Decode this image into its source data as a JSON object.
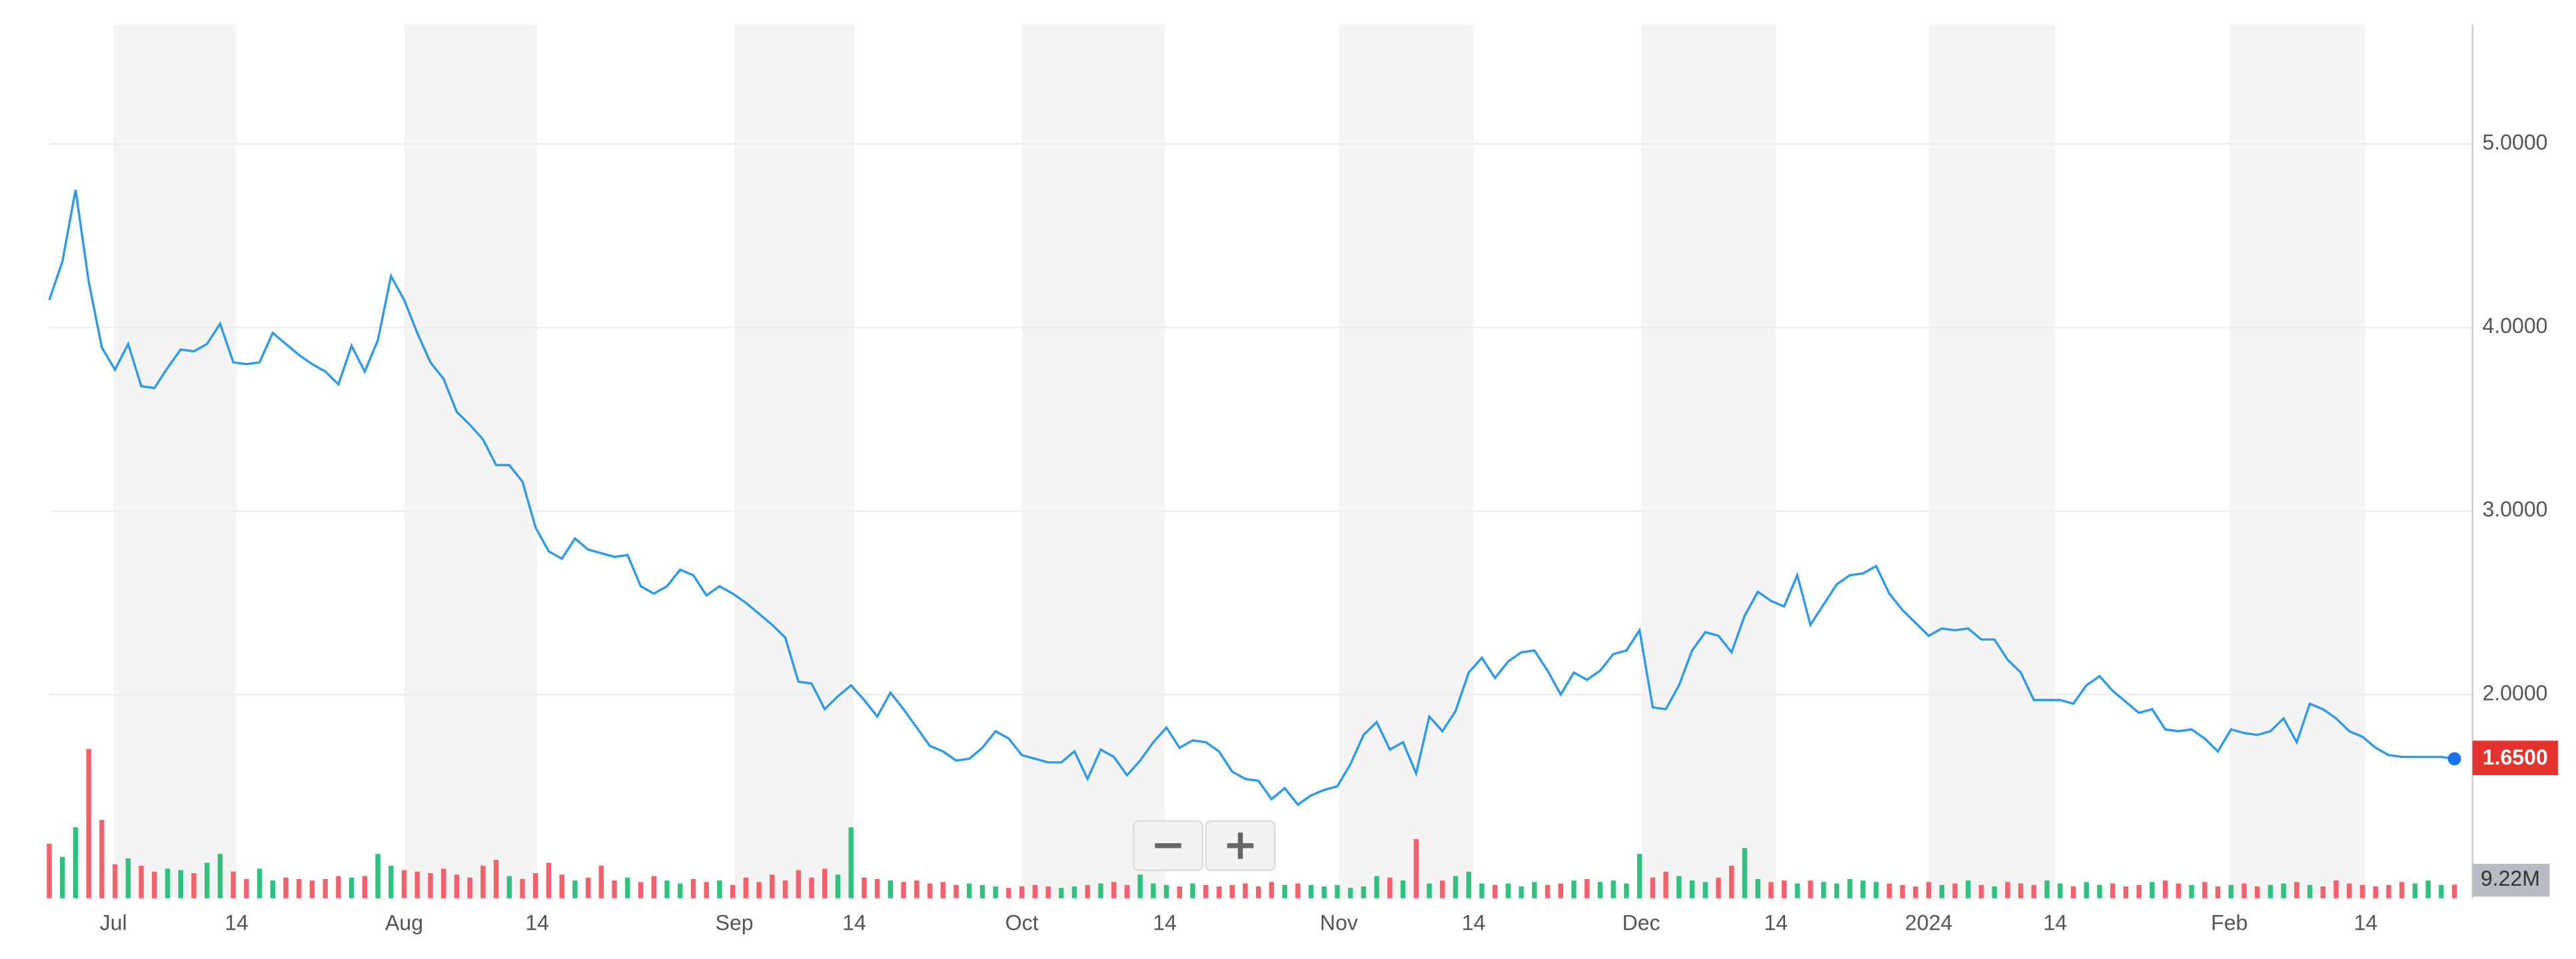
{
  "chart_data": {
    "type": "line",
    "line_color": "#2f9be6",
    "up_color": "#2ec27e",
    "down_color": "#f4606c",
    "band_color": "#f4f4f4",
    "grid": true,
    "xlim": [
      0,
      183
    ],
    "xticks": [
      {
        "value": 4.875,
        "label": "Jul"
      },
      {
        "value": 14.25,
        "label": "14"
      },
      {
        "value": 27,
        "label": "Aug"
      },
      {
        "value": 37.125,
        "label": "14"
      },
      {
        "value": 52.125,
        "label": "Sep"
      },
      {
        "value": 61.25,
        "label": "14"
      },
      {
        "value": 74,
        "label": "Oct"
      },
      {
        "value": 84.875,
        "label": "14"
      },
      {
        "value": 98.125,
        "label": "Nov"
      },
      {
        "value": 108.375,
        "label": "14"
      },
      {
        "value": 121.125,
        "label": "Dec"
      },
      {
        "value": 131.375,
        "label": "14"
      },
      {
        "value": 143,
        "label": "2024"
      },
      {
        "value": 152.625,
        "label": "14"
      },
      {
        "value": 165.875,
        "label": "Feb"
      },
      {
        "value": 176.25,
        "label": "14"
      }
    ],
    "ylim": [
      0.89,
      5.65
    ],
    "yticks": [
      {
        "value": 2,
        "label": "2.0000"
      },
      {
        "value": 3,
        "label": "3.0000"
      },
      {
        "value": 4,
        "label": "4.0000"
      },
      {
        "value": 5,
        "label": "5.0000"
      }
    ],
    "vlim": [
      0,
      120
    ],
    "last_price_label": "1.6500",
    "last_volume_label": "9.22M",
    "series": [
      {
        "name": "Price",
        "values": [
          4.15,
          4.36,
          4.75,
          4.25,
          3.89,
          3.77,
          3.91,
          3.68,
          3.67,
          3.78,
          3.88,
          3.87,
          3.91,
          4.02,
          3.81,
          3.8,
          3.81,
          3.97,
          3.91,
          3.85,
          3.8,
          3.76,
          3.69,
          3.9,
          3.76,
          3.93,
          4.28,
          4.15,
          3.97,
          3.81,
          3.72,
          3.54,
          3.47,
          3.39,
          3.25,
          3.25,
          3.16,
          2.91,
          2.78,
          2.74,
          2.85,
          2.79,
          2.77,
          2.75,
          2.76,
          2.59,
          2.55,
          2.59,
          2.68,
          2.65,
          2.54,
          2.59,
          2.55,
          2.5,
          2.44,
          2.38,
          2.31,
          2.07,
          2.06,
          1.92,
          1.99,
          2.05,
          1.97,
          1.88,
          2.01,
          1.92,
          1.82,
          1.72,
          1.69,
          1.64,
          1.65,
          1.71,
          1.8,
          1.76,
          1.67,
          1.65,
          1.63,
          1.63,
          1.69,
          1.54,
          1.7,
          1.66,
          1.56,
          1.64,
          1.74,
          1.82,
          1.71,
          1.75,
          1.74,
          1.69,
          1.58,
          1.54,
          1.53,
          1.43,
          1.49,
          1.4,
          1.45,
          1.48,
          1.5,
          1.62,
          1.78,
          1.85,
          1.7,
          1.74,
          1.57,
          1.88,
          1.8,
          1.91,
          2.12,
          2.2,
          2.09,
          2.18,
          2.23,
          2.24,
          2.13,
          2.0,
          2.12,
          2.08,
          2.13,
          2.22,
          2.24,
          2.35,
          1.93,
          1.92,
          2.05,
          2.24,
          2.34,
          2.32,
          2.23,
          2.43,
          2.56,
          2.51,
          2.48,
          2.65,
          2.38,
          2.49,
          2.6,
          2.65,
          2.66,
          2.7,
          2.55,
          2.46,
          2.39,
          2.32,
          2.36,
          2.35,
          2.36,
          2.3,
          2.3,
          2.19,
          2.12,
          1.97,
          1.97,
          1.97,
          1.95,
          2.05,
          2.1,
          2.02,
          1.96,
          1.9,
          1.92,
          1.81,
          1.8,
          1.81,
          1.76,
          1.69,
          1.81,
          1.79,
          1.78,
          1.8,
          1.87,
          1.74,
          1.95,
          1.92,
          1.87,
          1.8,
          1.77,
          1.71,
          1.67,
          1.66,
          1.66,
          1.66,
          1.66,
          1.65
        ]
      },
      {
        "name": "Volume",
        "values": [
          37,
          28,
          48,
          101,
          53,
          23,
          27,
          22,
          18,
          20,
          19,
          17,
          24,
          30,
          18,
          13,
          20,
          12,
          14,
          13,
          12,
          13,
          15,
          14,
          15,
          30,
          22,
          19,
          18,
          17,
          20,
          16,
          14,
          22,
          26,
          15,
          13,
          17,
          24,
          16,
          12,
          14,
          22,
          12,
          14,
          11,
          15,
          12,
          10,
          13,
          11,
          12,
          9,
          14,
          11,
          16,
          12,
          19,
          14,
          20,
          16,
          48,
          14,
          13,
          12,
          11,
          12,
          10,
          11,
          9,
          10,
          9,
          8,
          7,
          8,
          9,
          8,
          7,
          8,
          9,
          10,
          11,
          9,
          16,
          10,
          9,
          8,
          10,
          9,
          8,
          9,
          10,
          8,
          11,
          9,
          10,
          9,
          8,
          9,
          7,
          8,
          15,
          14,
          12,
          40,
          10,
          12,
          15,
          18,
          10,
          9,
          10,
          8,
          11,
          9,
          10,
          12,
          13,
          11,
          12,
          10,
          30,
          14,
          18,
          15,
          12,
          11,
          14,
          22,
          34,
          13,
          11,
          12,
          10,
          12,
          11,
          10,
          13,
          12,
          11,
          10,
          9,
          8,
          11,
          9,
          10,
          12,
          9,
          8,
          11,
          10,
          9,
          12,
          10,
          8,
          11,
          9,
          10,
          8,
          9,
          11,
          12,
          10,
          9,
          11,
          8,
          9,
          10,
          8,
          9,
          10,
          11,
          9,
          8,
          12,
          10,
          9,
          8,
          9,
          11,
          10,
          12,
          9,
          9.22
        ]
      }
    ]
  }
}
